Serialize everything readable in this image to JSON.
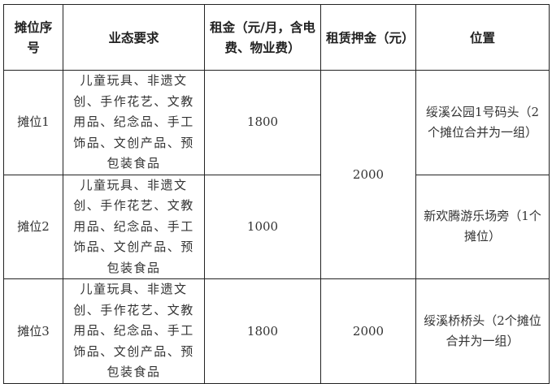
{
  "headers": [
    "摊位序号",
    "业态要求",
    "租金（元/月，含电费、物业费）",
    "租赁押金（元）",
    "位置"
  ],
  "rows": [
    {
      "id": "摊位1",
      "requirement": "儿童玩具、非遗文创、手作花艺、文教用品、纪念品、手工饰品、文创产品、预包装食品",
      "rent": "1800",
      "location": "绥溪公园1号码头（2个摊位合并为一组）"
    },
    {
      "id": "摊位2",
      "requirement": "儿童玩具、非遗文创、手作花艺、文教用品、纪念品、手工饰品、文创产品、预包装食品",
      "rent": "1000",
      "location": "新欢腾游乐场旁（1个摊位）"
    },
    {
      "id": "摊位3",
      "requirement": "儿童玩具、非遗文创、手作花艺、文教用品、纪念品、手工饰品、文创产品、预包装食品",
      "rent": "1800",
      "deposit": "2000",
      "location": "绥溪桥桥头（2个摊位合并为一组）"
    }
  ],
  "deposit_rows_1_2": "2000"
}
